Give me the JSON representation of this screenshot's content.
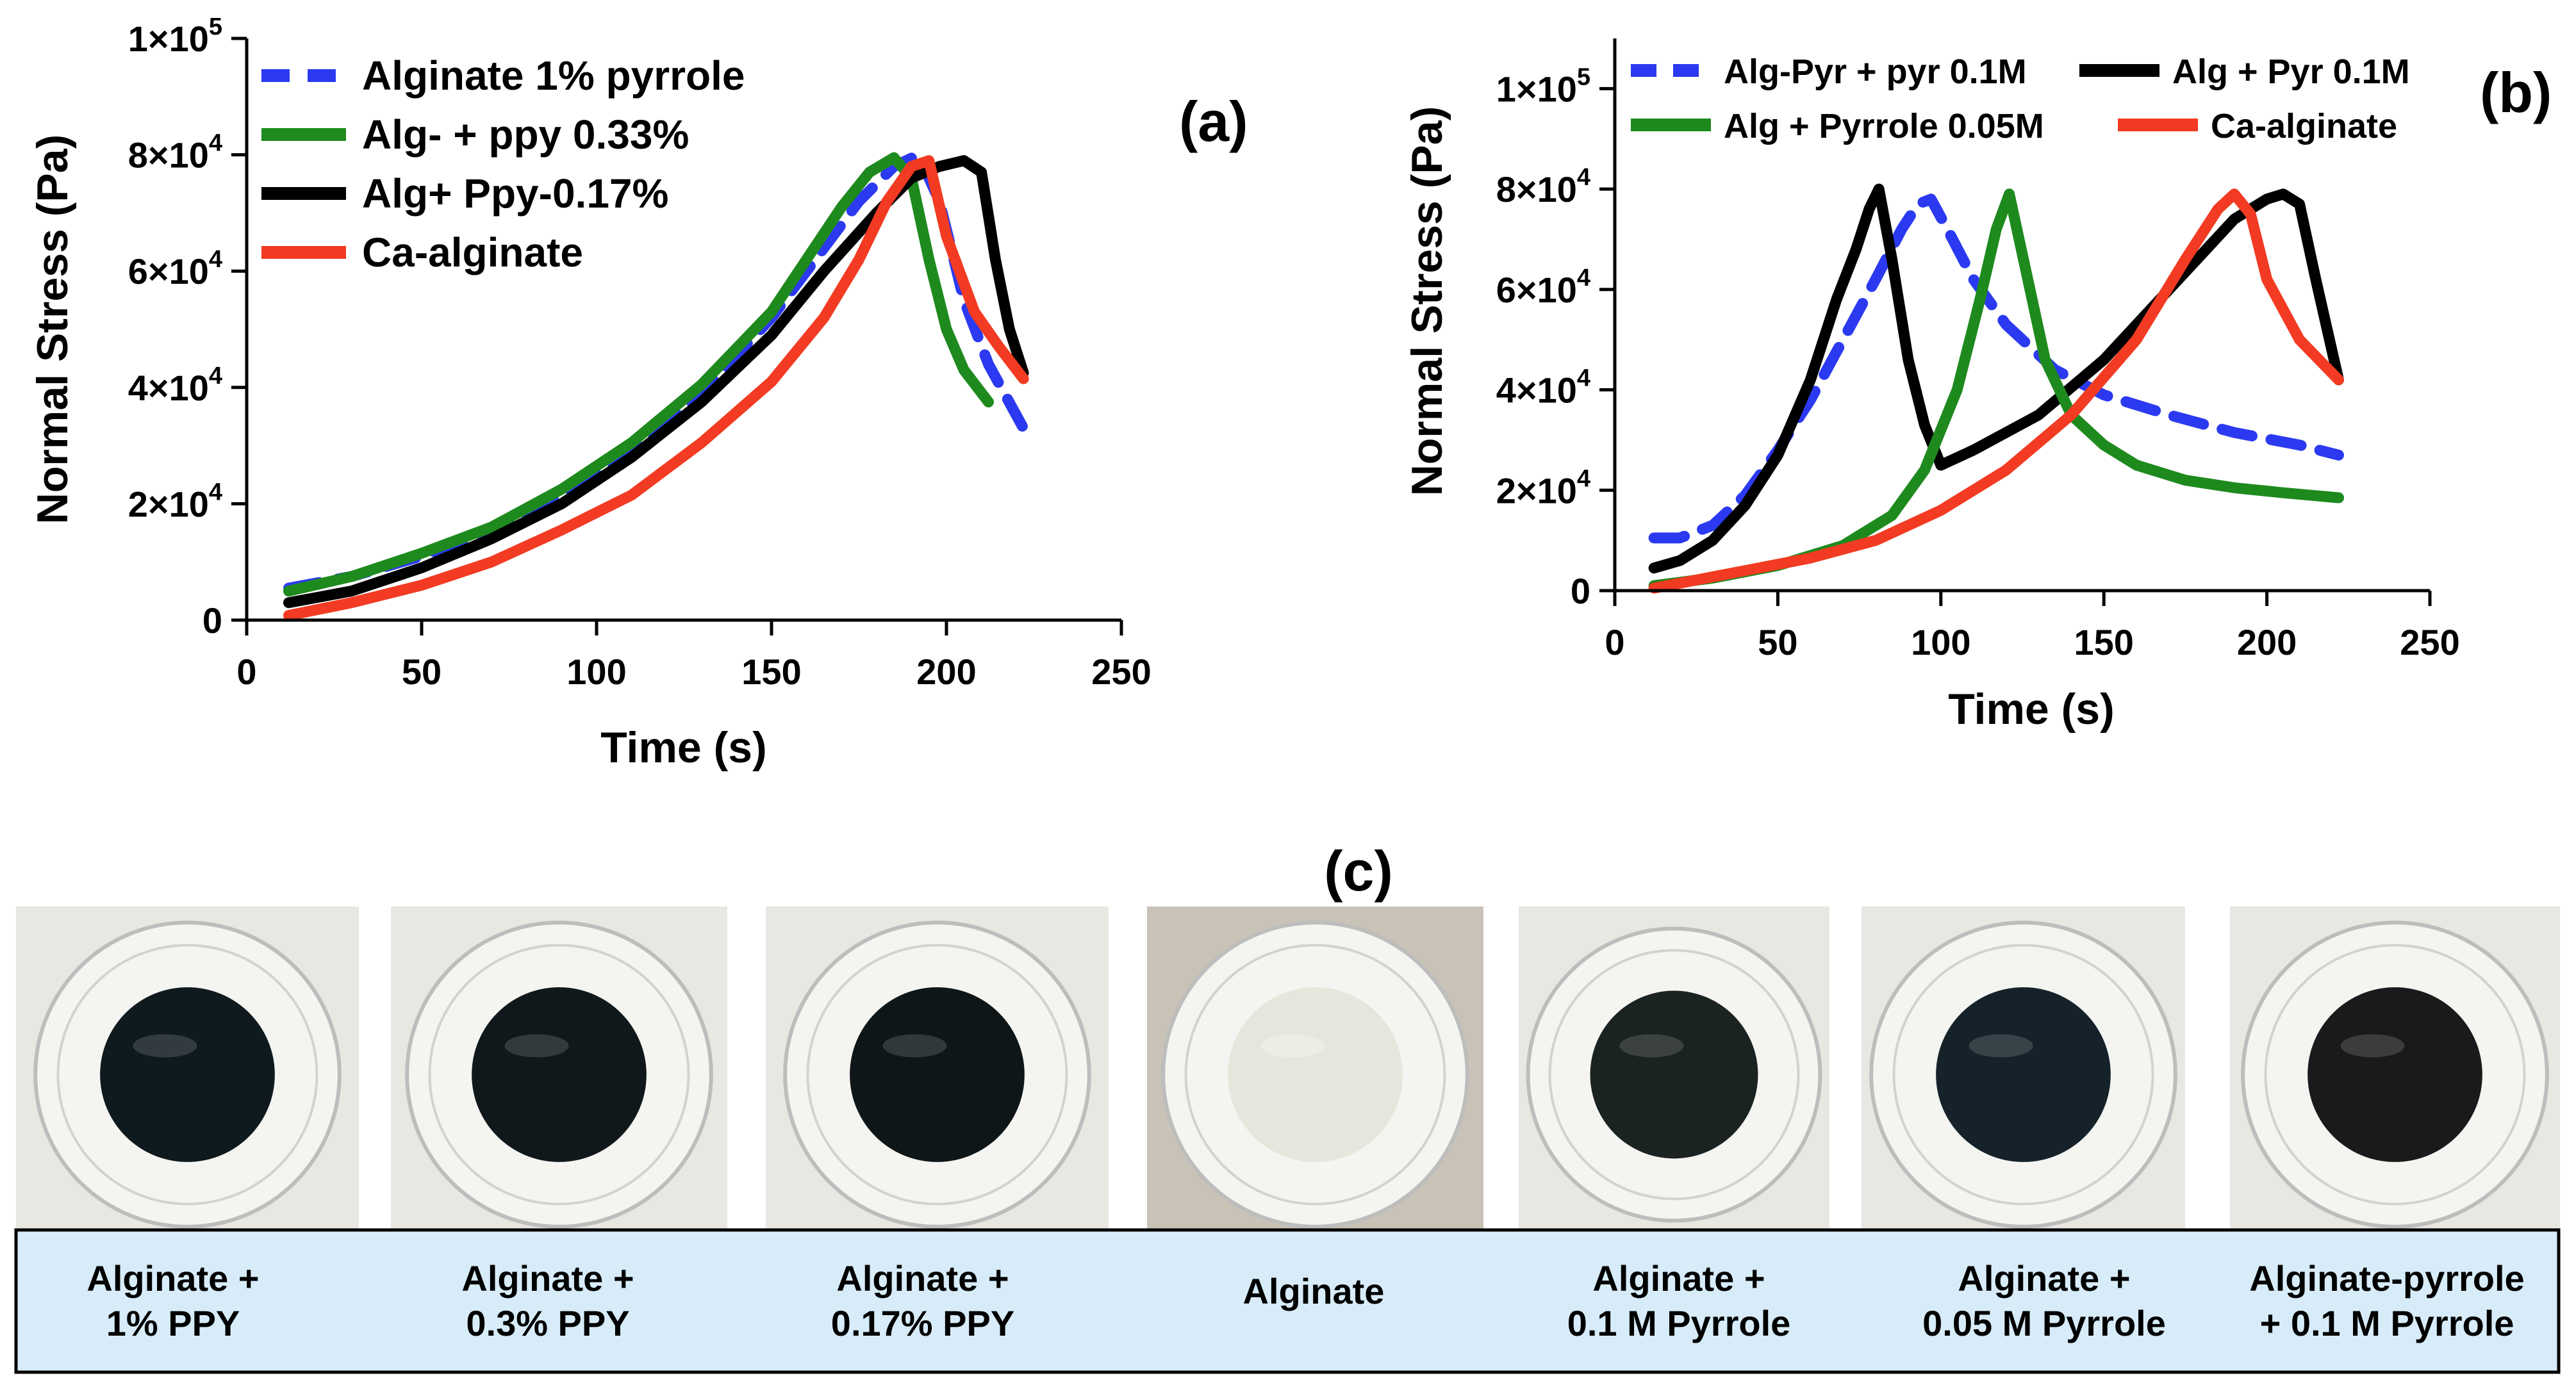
{
  "chart_data": [
    {
      "panel": "(a)",
      "type": "line",
      "xlabel": "Time (s)",
      "ylabel": "Normal Stress (Pa)",
      "xlim": [
        0,
        250
      ],
      "ylim": [
        0,
        100000
      ],
      "xticks": [
        "0",
        "50",
        "100",
        "150",
        "200",
        "250"
      ],
      "yticks": [
        {
          "base": "0",
          "exp": ""
        },
        {
          "base": "2×10",
          "exp": "4"
        },
        {
          "base": "4×10",
          "exp": "4"
        },
        {
          "base": "6×10",
          "exp": "4"
        },
        {
          "base": "8×10",
          "exp": "4"
        },
        {
          "base": "1×10",
          "exp": "5"
        }
      ],
      "legend_position": "top-left",
      "series": [
        {
          "name": "Alginate 1% pyrrole",
          "color": "#2b3af0",
          "style": "dashed",
          "x": [
            12,
            30,
            50,
            70,
            90,
            110,
            130,
            150,
            165,
            175,
            185,
            192,
            198,
            205,
            212,
            222
          ],
          "y": [
            5500,
            7500,
            11000,
            15500,
            21500,
            29500,
            39000,
            52000,
            64000,
            72000,
            78000,
            80000,
            72000,
            55000,
            44000,
            33000
          ]
        },
        {
          "name": "Alg- + ppy 0.33%",
          "color": "#1e8a1e",
          "style": "solid",
          "x": [
            12,
            30,
            50,
            70,
            90,
            110,
            130,
            150,
            160,
            170,
            178,
            185,
            190,
            195,
            200,
            205,
            212
          ],
          "y": [
            5000,
            7500,
            11500,
            16000,
            22500,
            30500,
            40500,
            53000,
            62000,
            71000,
            77000,
            79500,
            76000,
            62000,
            50000,
            43000,
            37500
          ]
        },
        {
          "name": "Alg+ Ppy-0.17%",
          "color": "#000000",
          "style": "solid",
          "x": [
            12,
            30,
            50,
            70,
            90,
            110,
            130,
            150,
            165,
            180,
            190,
            198,
            205,
            210,
            214,
            218,
            222
          ],
          "y": [
            3000,
            5000,
            9000,
            14000,
            20000,
            28000,
            37500,
            49000,
            60000,
            70000,
            76000,
            78000,
            79000,
            77000,
            62000,
            50000,
            42500
          ]
        },
        {
          "name": "Ca-alginate",
          "color": "#f23b22",
          "style": "solid",
          "x": [
            12,
            30,
            50,
            70,
            90,
            110,
            130,
            150,
            165,
            175,
            183,
            190,
            195,
            200,
            208,
            215,
            222
          ],
          "y": [
            800,
            3000,
            6000,
            10000,
            15500,
            21500,
            30500,
            41000,
            52000,
            62000,
            72000,
            78000,
            79000,
            66000,
            53000,
            47000,
            41500
          ]
        }
      ]
    },
    {
      "panel": "(b)",
      "type": "line",
      "xlabel": "Time (s)",
      "ylabel": "Normal Stress (Pa)",
      "xlim": [
        0,
        250
      ],
      "ylim": [
        0,
        110000
      ],
      "xticks": [
        "0",
        "50",
        "100",
        "150",
        "200",
        "250"
      ],
      "yticks": [
        {
          "base": "0",
          "exp": ""
        },
        {
          "base": "2×10",
          "exp": "4"
        },
        {
          "base": "4×10",
          "exp": "4"
        },
        {
          "base": "6×10",
          "exp": "4"
        },
        {
          "base": "8×10",
          "exp": "4"
        },
        {
          "base": "1×10",
          "exp": "5"
        }
      ],
      "legend_position": "top",
      "series": [
        {
          "name": "Alg-Pyr + pyr 0.1M",
          "color": "#2b3af0",
          "style": "dashed",
          "x": [
            12,
            20,
            30,
            40,
            50,
            60,
            70,
            80,
            88,
            93,
            97,
            102,
            110,
            120,
            135,
            150,
            170,
            190,
            210,
            222
          ],
          "y": [
            10500,
            10500,
            13000,
            19000,
            28000,
            38000,
            50000,
            62000,
            72000,
            77000,
            78000,
            72000,
            62000,
            53000,
            44000,
            39000,
            35000,
            31500,
            29000,
            27000
          ]
        },
        {
          "name": "Alg + Pyr 0.1M",
          "color": "#000000",
          "style": "solid",
          "x": [
            12,
            20,
            30,
            40,
            50,
            60,
            68,
            74,
            78,
            81,
            85,
            90,
            95,
            100,
            110,
            130,
            150,
            170,
            190,
            200,
            205,
            210,
            215,
            222
          ],
          "y": [
            4500,
            6000,
            10000,
            17000,
            27000,
            42000,
            58000,
            68000,
            76000,
            80000,
            66000,
            46000,
            33000,
            25000,
            28000,
            35000,
            46000,
            60000,
            74000,
            78000,
            79000,
            77000,
            62000,
            42000
          ]
        },
        {
          "name": "Alg + Pyrrole 0.05M",
          "color": "#1e8a1e",
          "style": "solid",
          "x": [
            12,
            30,
            50,
            70,
            85,
            95,
            105,
            112,
            117,
            121,
            126,
            132,
            140,
            150,
            160,
            175,
            190,
            205,
            222
          ],
          "y": [
            1000,
            2500,
            5000,
            9000,
            15000,
            24000,
            40000,
            58000,
            72000,
            79000,
            64000,
            46000,
            35000,
            29000,
            25000,
            22000,
            20500,
            19500,
            18500
          ]
        },
        {
          "name": "Ca-alginate",
          "color": "#f23b22",
          "style": "solid",
          "x": [
            12,
            40,
            60,
            80,
            100,
            120,
            140,
            160,
            175,
            185,
            190,
            195,
            200,
            210,
            222
          ],
          "y": [
            500,
            4000,
            6500,
            10000,
            16000,
            24000,
            35000,
            50000,
            66000,
            76000,
            79000,
            75000,
            62000,
            50000,
            42000
          ]
        }
      ]
    }
  ],
  "panel_c": {
    "title": "(c)",
    "photos": [
      {
        "line1": "Alginate +",
        "line2": "1% PPY",
        "disk_color": "#0f1a1f"
      },
      {
        "line1": "Alginate +",
        "line2": "0.3% PPY",
        "disk_color": "#10181c"
      },
      {
        "line1": "Alginate +",
        "line2": "0.17% PPY",
        "disk_color": "#0e1618"
      },
      {
        "line1": "Alginate",
        "line2": "",
        "disk_color": "#e6e6dc"
      },
      {
        "line1": "Alginate +",
        "line2": "0.1 M Pyrrole",
        "disk_color": "#1a2222"
      },
      {
        "line1": "Alginate +",
        "line2": "0.05 M Pyrrole",
        "disk_color": "#15222a"
      },
      {
        "line1": "Alginate-pyrrole",
        "line2": "+ 0.1 M Pyrrole",
        "disk_color": "#1a1a1c"
      }
    ],
    "label_bg": "#d7ecf8"
  }
}
